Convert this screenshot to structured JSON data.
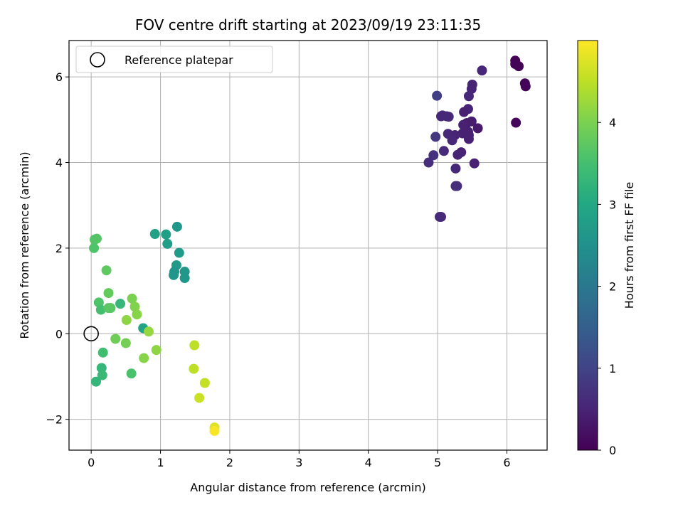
{
  "chart_data": {
    "type": "scatter",
    "title": "FOV centre drift starting at 2023/09/19 23:11:35",
    "xlabel": "Angular distance from reference (arcmin)",
    "ylabel": "Rotation from reference (arcmin)",
    "xlim": [
      -0.32,
      6.58
    ],
    "ylim": [
      -2.72,
      6.85
    ],
    "xticks": [
      0,
      1,
      2,
      3,
      4,
      5,
      6
    ],
    "yticks": [
      -2,
      0,
      2,
      4,
      6
    ],
    "grid": true,
    "legend": {
      "placement": "upper-left",
      "entries": [
        "Reference platepar"
      ]
    },
    "reference_point": {
      "x": 0,
      "y": 0,
      "label": "Reference platepar"
    },
    "colorbar": {
      "label": "Hours from first FF file",
      "colormap": "viridis",
      "range": [
        0,
        5.0
      ],
      "ticks": [
        0,
        1,
        2,
        3,
        4
      ]
    },
    "points": [
      {
        "x": 6.12,
        "y": 6.38,
        "c": 0.05
      },
      {
        "x": 6.17,
        "y": 6.25,
        "c": 0.05
      },
      {
        "x": 6.12,
        "y": 6.3,
        "c": 0.05
      },
      {
        "x": 6.26,
        "y": 5.85,
        "c": 0.06
      },
      {
        "x": 6.27,
        "y": 5.78,
        "c": 0.06
      },
      {
        "x": 6.13,
        "y": 4.93,
        "c": 0.08
      },
      {
        "x": 5.64,
        "y": 6.15,
        "c": 0.55
      },
      {
        "x": 5.5,
        "y": 5.82,
        "c": 0.5
      },
      {
        "x": 5.49,
        "y": 5.72,
        "c": 0.5
      },
      {
        "x": 5.45,
        "y": 5.55,
        "c": 0.55
      },
      {
        "x": 4.99,
        "y": 5.56,
        "c": 0.9
      },
      {
        "x": 5.44,
        "y": 5.25,
        "c": 0.5
      },
      {
        "x": 5.38,
        "y": 5.18,
        "c": 0.45
      },
      {
        "x": 5.05,
        "y": 5.08,
        "c": 0.6
      },
      {
        "x": 5.16,
        "y": 5.07,
        "c": 0.6
      },
      {
        "x": 5.07,
        "y": 5.1,
        "c": 0.55
      },
      {
        "x": 5.13,
        "y": 5.08,
        "c": 0.55
      },
      {
        "x": 5.49,
        "y": 4.96,
        "c": 0.4
      },
      {
        "x": 5.42,
        "y": 4.92,
        "c": 0.4
      },
      {
        "x": 5.37,
        "y": 4.88,
        "c": 0.45
      },
      {
        "x": 5.58,
        "y": 4.8,
        "c": 0.35
      },
      {
        "x": 5.44,
        "y": 4.72,
        "c": 0.45
      },
      {
        "x": 5.36,
        "y": 4.68,
        "c": 0.45
      },
      {
        "x": 5.15,
        "y": 4.67,
        "c": 0.55
      },
      {
        "x": 5.25,
        "y": 4.64,
        "c": 0.5
      },
      {
        "x": 5.45,
        "y": 4.64,
        "c": 0.45
      },
      {
        "x": 4.97,
        "y": 4.6,
        "c": 0.8
      },
      {
        "x": 5.21,
        "y": 4.52,
        "c": 0.55
      },
      {
        "x": 5.45,
        "y": 4.55,
        "c": 0.45
      },
      {
        "x": 5.09,
        "y": 4.27,
        "c": 0.6
      },
      {
        "x": 5.34,
        "y": 4.24,
        "c": 0.5
      },
      {
        "x": 5.29,
        "y": 4.18,
        "c": 0.5
      },
      {
        "x": 4.94,
        "y": 4.17,
        "c": 0.7
      },
      {
        "x": 4.87,
        "y": 4.0,
        "c": 0.65
      },
      {
        "x": 5.53,
        "y": 3.98,
        "c": 0.45
      },
      {
        "x": 5.26,
        "y": 3.86,
        "c": 0.55
      },
      {
        "x": 5.26,
        "y": 3.45,
        "c": 0.65
      },
      {
        "x": 5.28,
        "y": 3.45,
        "c": 0.65
      },
      {
        "x": 5.03,
        "y": 2.73,
        "c": 0.6
      },
      {
        "x": 5.05,
        "y": 2.73,
        "c": 0.6
      },
      {
        "x": 1.24,
        "y": 2.5,
        "c": 2.65
      },
      {
        "x": 0.92,
        "y": 2.33,
        "c": 2.85
      },
      {
        "x": 1.08,
        "y": 2.32,
        "c": 2.8
      },
      {
        "x": 1.1,
        "y": 2.1,
        "c": 2.75
      },
      {
        "x": 1.27,
        "y": 1.89,
        "c": 2.7
      },
      {
        "x": 1.23,
        "y": 1.6,
        "c": 2.7
      },
      {
        "x": 1.2,
        "y": 1.45,
        "c": 2.6
      },
      {
        "x": 1.19,
        "y": 1.37,
        "c": 2.6
      },
      {
        "x": 1.35,
        "y": 1.45,
        "c": 2.6
      },
      {
        "x": 1.35,
        "y": 1.3,
        "c": 2.6
      },
      {
        "x": 0.75,
        "y": 0.13,
        "c": 2.9
      },
      {
        "x": 0.05,
        "y": 2.2,
        "c": 3.65
      },
      {
        "x": 0.08,
        "y": 2.22,
        "c": 3.65
      },
      {
        "x": 0.04,
        "y": 2.0,
        "c": 3.6
      },
      {
        "x": 0.22,
        "y": 1.48,
        "c": 3.75
      },
      {
        "x": 0.25,
        "y": 0.95,
        "c": 3.8
      },
      {
        "x": 0.11,
        "y": 0.73,
        "c": 3.6
      },
      {
        "x": 0.14,
        "y": 0.56,
        "c": 3.5
      },
      {
        "x": 0.25,
        "y": 0.6,
        "c": 3.7
      },
      {
        "x": 0.28,
        "y": 0.6,
        "c": 3.7
      },
      {
        "x": 0.42,
        "y": 0.7,
        "c": 3.3
      },
      {
        "x": 0.59,
        "y": 0.82,
        "c": 4.0
      },
      {
        "x": 0.63,
        "y": 0.63,
        "c": 4.05
      },
      {
        "x": 0.66,
        "y": 0.45,
        "c": 4.1
      },
      {
        "x": 0.51,
        "y": 0.32,
        "c": 4.15
      },
      {
        "x": 0.83,
        "y": 0.05,
        "c": 4.2
      },
      {
        "x": 0.35,
        "y": -0.12,
        "c": 3.9
      },
      {
        "x": 0.5,
        "y": -0.22,
        "c": 3.95
      },
      {
        "x": 0.17,
        "y": -0.44,
        "c": 3.45
      },
      {
        "x": 0.94,
        "y": -0.38,
        "c": 4.15
      },
      {
        "x": 0.76,
        "y": -0.57,
        "c": 4.1
      },
      {
        "x": 0.15,
        "y": -0.8,
        "c": 3.3
      },
      {
        "x": 0.16,
        "y": -0.97,
        "c": 3.35
      },
      {
        "x": 0.58,
        "y": -0.93,
        "c": 3.55
      },
      {
        "x": 0.07,
        "y": -1.12,
        "c": 3.3
      },
      {
        "x": 1.49,
        "y": -0.27,
        "c": 4.5
      },
      {
        "x": 1.48,
        "y": -0.82,
        "c": 4.5
      },
      {
        "x": 1.64,
        "y": -1.15,
        "c": 4.55
      },
      {
        "x": 1.56,
        "y": -1.5,
        "c": 4.6
      },
      {
        "x": 1.78,
        "y": -2.19,
        "c": 4.75
      },
      {
        "x": 1.78,
        "y": -2.27,
        "c": 4.95
      }
    ]
  }
}
